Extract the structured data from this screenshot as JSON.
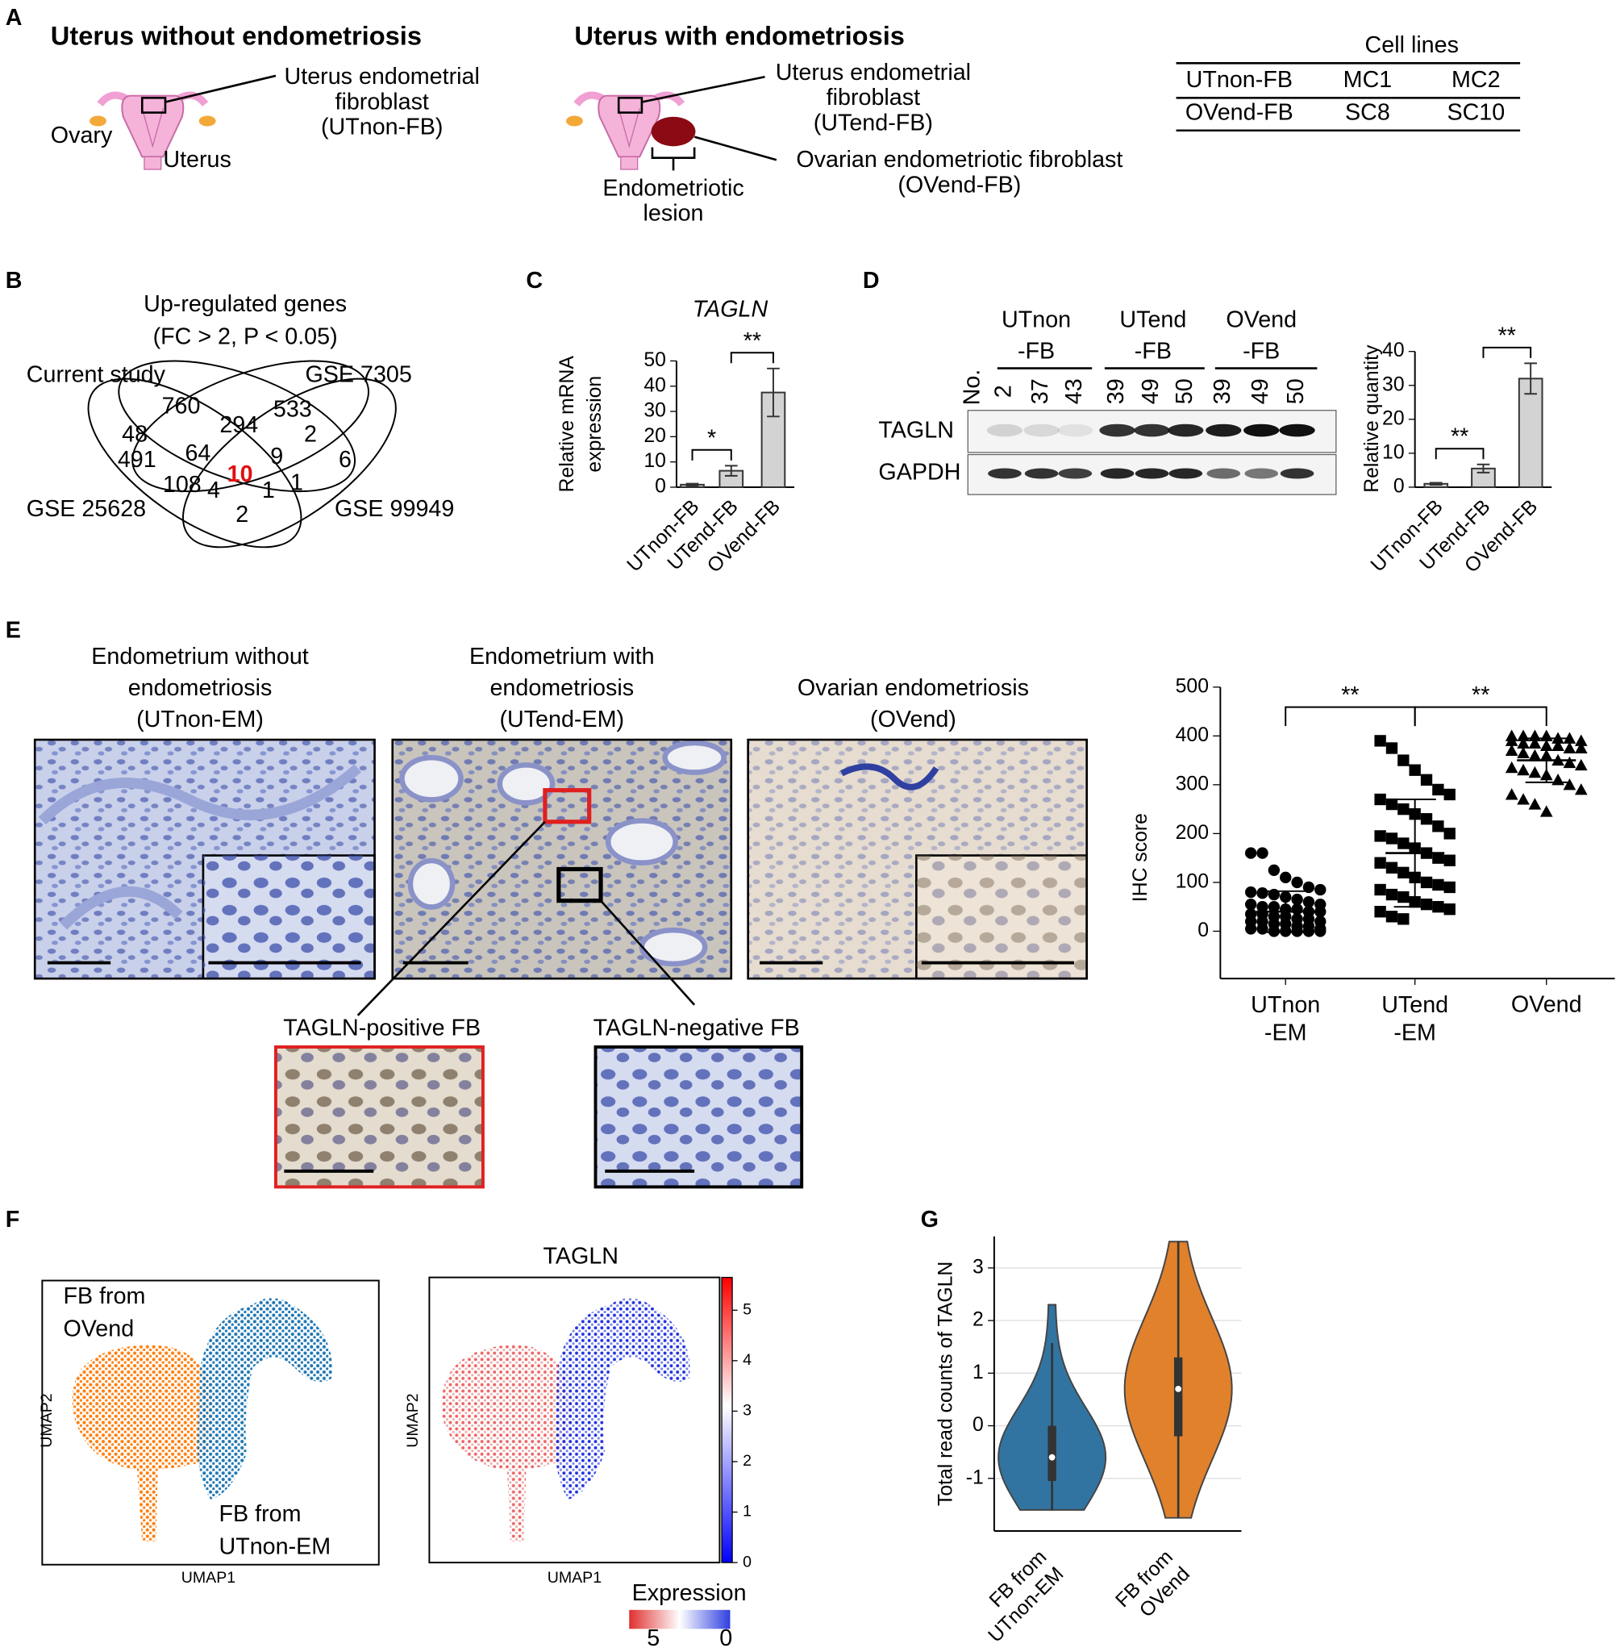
{
  "panel_labels": [
    "A",
    "B",
    "C",
    "D",
    "E",
    "F",
    "G"
  ],
  "panel_a": {
    "left_title": "Uterus without endometriosis",
    "left_callout": [
      "Uterus endometrial",
      "fibroblast",
      "(UTnon-FB)"
    ],
    "ovary": "Ovary",
    "uterus": "Uterus",
    "right_title": "Uterus with endometriosis",
    "right_callout": [
      "Uterus endometrial",
      "fibroblast",
      "(UTend-FB)"
    ],
    "ovarian_callout": [
      "Ovarian endometriotic fibroblast",
      "(OVend-FB)"
    ],
    "lesion": [
      "Endometriotic",
      "lesion"
    ],
    "cell_lines": {
      "title": "Cell lines",
      "rows": [
        [
          "UTnon-FB",
          "MC1",
          "MC2"
        ],
        [
          "OVend-FB",
          "SC8",
          "SC10"
        ]
      ]
    }
  },
  "panel_b": {
    "title": "Up-regulated genes",
    "subtitle": "(FC > 2, P < 0.05)",
    "sets": [
      "Current study",
      "GSE 7305",
      "GSE 25628",
      "GSE 99949"
    ],
    "regions": [
      760,
      533,
      48,
      294,
      2,
      491,
      64,
      9,
      6,
      108,
      10,
      4,
      1,
      1,
      2
    ]
  },
  "panel_d_blot": {
    "groups": [
      [
        "UTnon",
        "-FB"
      ],
      [
        "UTend",
        "-FB"
      ],
      [
        "OVend",
        "-FB"
      ]
    ],
    "lane_header": "No.",
    "lanes": [
      2,
      37,
      43,
      39,
      49,
      50,
      39,
      49,
      50
    ],
    "rows": [
      "TAGLN",
      "GAPDH"
    ]
  },
  "panel_e_images": {
    "titles": [
      [
        "Endometrium without",
        "endometriosis",
        "(UTnon-EM)"
      ],
      [
        "Endometrium with",
        "endometriosis",
        "(UTend-EM)"
      ],
      [
        "Ovarian endometriosis",
        "(OVend)"
      ]
    ],
    "insets": [
      "TAGLN-positive FB",
      "TAGLN-negative FB"
    ]
  },
  "panel_f": {
    "left_labels": [
      [
        "FB from",
        "OVend"
      ],
      [
        "FB from",
        "UTnon-EM"
      ]
    ],
    "x_label": "UMAP1",
    "y_label": "UMAP2",
    "title": "TAGLN",
    "colorbar": {
      "lim": [
        0,
        5.65
      ],
      "ticks": [
        0,
        1,
        2,
        3,
        4,
        5
      ]
    },
    "legend_title": "Expression",
    "legend_ends": [
      5,
      0
    ]
  },
  "chart_data": [
    {
      "type": "bar",
      "title": "TAGLN",
      "y_label": [
        "Relative mRNA",
        "expression"
      ],
      "categories": [
        "UTnon-FB",
        "UTend-FB",
        "OVend-FB"
      ],
      "values": [
        1,
        6.5,
        37.5
      ],
      "errors": [
        0.4,
        2,
        9.5
      ],
      "color": "#d3d3d3",
      "ylim": [
        0,
        50
      ],
      "yticks": [
        0,
        10,
        20,
        30,
        40,
        50
      ],
      "significance": [
        "*",
        "**"
      ]
    },
    {
      "type": "bar",
      "y_label": "Relative quantity",
      "categories": [
        "UTnon-FB",
        "UTend-FB",
        "OVend-FB"
      ],
      "values": [
        1,
        5.5,
        32
      ],
      "errors": [
        0.3,
        1.2,
        4.5
      ],
      "color": "#d3d3d3",
      "ylim": [
        0,
        40
      ],
      "yticks": [
        0,
        10,
        20,
        30,
        40
      ],
      "significance": [
        "**",
        "**"
      ]
    },
    {
      "type": "dot",
      "y_label": "IHC score",
      "categories": [
        "UTnon\n-EM",
        "UTend\n-EM",
        "OVend"
      ],
      "markers": [
        "circle",
        "square",
        "triangle"
      ],
      "values": [
        [
          160,
          160,
          125,
          110,
          100,
          90,
          85,
          80,
          78,
          75,
          70,
          65,
          60,
          55,
          55,
          50,
          50,
          45,
          45,
          40,
          40,
          35,
          35,
          30,
          30,
          25,
          25,
          20,
          20,
          20,
          15,
          15,
          10,
          10,
          5,
          5,
          5,
          0,
          0,
          0,
          0,
          0
        ],
        [
          390,
          375,
          350,
          330,
          310,
          290,
          280,
          270,
          260,
          250,
          240,
          230,
          215,
          200,
          195,
          190,
          180,
          170,
          160,
          150,
          145,
          140,
          130,
          120,
          110,
          100,
          95,
          90,
          85,
          75,
          70,
          60,
          55,
          50,
          45,
          40,
          30,
          25
        ],
        [
          400,
          400,
          400,
          400,
          395,
          395,
          390,
          390,
          385,
          385,
          380,
          380,
          375,
          375,
          370,
          365,
          360,
          360,
          350,
          345,
          340,
          335,
          330,
          325,
          320,
          310,
          300,
          290,
          280,
          270,
          260,
          245
        ]
      ],
      "means": [
        40,
        160,
        350
      ],
      "sds": [
        42,
        110,
        45
      ],
      "ylim": [
        -97,
        500
      ],
      "yticks": [
        0,
        100,
        200,
        300,
        400,
        500
      ],
      "significance": [
        "**",
        "**"
      ]
    },
    {
      "type": "violin",
      "y_label": "Total read counts of TAGLN",
      "categories": [
        "FB from\nUTnon-EM",
        "FB from\nOVend"
      ],
      "series": [
        {
          "color": "#3274a1",
          "min": -1.6,
          "q1": -1.05,
          "median": -0.6,
          "q3": 0.0,
          "max": 2.3
        },
        {
          "color": "#e1812c",
          "min": -1.75,
          "q1": -0.2,
          "median": 0.7,
          "q3": 1.3,
          "max": 3.5
        }
      ],
      "ylim": [
        -2,
        3.6
      ],
      "yticks": [
        -1,
        0,
        1,
        2,
        3
      ],
      "grid": true
    }
  ]
}
